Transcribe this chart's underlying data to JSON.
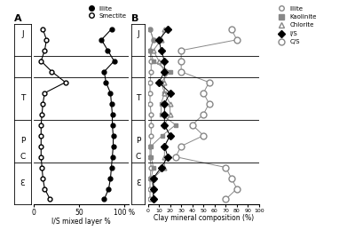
{
  "panel_A": {
    "title": "A",
    "xlabel": "I/S mixed layer %",
    "xticks": [
      0,
      50,
      100
    ],
    "smectite_y": [
      1,
      2,
      3,
      4,
      5,
      6,
      7,
      8,
      9,
      10,
      11,
      12,
      13,
      14,
      15,
      16,
      17
    ],
    "smectite_x": [
      18,
      12,
      10,
      9,
      8,
      8,
      8,
      8,
      9,
      10,
      12,
      35,
      20,
      8,
      12,
      14,
      10
    ],
    "illite_y": [
      1,
      2,
      3,
      4,
      5,
      6,
      7,
      8,
      9,
      10,
      11,
      12,
      13,
      14,
      15,
      16,
      17
    ],
    "illite_x": [
      78,
      83,
      85,
      86,
      87,
      88,
      88,
      87,
      87,
      86,
      85,
      80,
      78,
      89,
      82,
      75,
      86
    ]
  },
  "panel_B": {
    "title": "B",
    "xlabel": "Clay mineral composition (%)",
    "xticks": [
      0,
      10,
      20,
      30,
      40,
      50,
      60,
      70,
      80,
      90,
      100
    ],
    "illite_x": [
      2,
      5,
      2,
      3,
      3,
      2,
      2,
      2,
      3,
      3,
      3,
      2,
      2,
      3,
      2,
      2,
      2
    ],
    "illite_y": [
      17,
      16,
      15,
      14,
      13,
      12,
      11,
      10,
      9,
      8,
      7,
      6,
      5,
      4,
      3,
      2,
      1
    ],
    "kaolinite_x": [
      2,
      5,
      2,
      5,
      20,
      12,
      15,
      12,
      12,
      25,
      13,
      3,
      3,
      5,
      3,
      5,
      5
    ],
    "kaolinite_y": [
      17,
      16,
      15,
      14,
      13,
      12,
      11,
      10,
      9,
      8,
      7,
      6,
      5,
      4,
      3,
      2,
      1
    ],
    "chlorite_x": [
      15,
      12,
      5,
      10,
      15,
      15,
      15,
      20,
      20,
      15,
      20,
      15,
      15,
      15,
      5,
      5,
      5
    ],
    "chlorite_y": [
      17,
      16,
      15,
      14,
      13,
      12,
      11,
      10,
      9,
      8,
      7,
      6,
      5,
      4,
      3,
      2,
      1
    ],
    "IS_x": [
      18,
      10,
      12,
      15,
      15,
      10,
      20,
      15,
      15,
      15,
      20,
      15,
      18,
      12,
      5,
      5,
      5
    ],
    "IS_y": [
      17,
      16,
      15,
      14,
      13,
      12,
      11,
      10,
      9,
      8,
      7,
      6,
      5,
      4,
      3,
      2,
      1
    ],
    "CS_x": [
      75,
      80,
      30,
      30,
      30,
      55,
      50,
      55,
      50,
      40,
      50,
      30,
      25,
      70,
      75,
      80,
      70
    ],
    "CS_y": [
      17,
      16,
      15,
      14,
      13,
      12,
      11,
      10,
      9,
      8,
      7,
      6,
      5,
      4,
      3,
      2,
      1
    ]
  },
  "strat_boundaries": [
    4.5,
    8.5,
    12.5,
    14.5
  ],
  "strat_labels": {
    "J": 16.5,
    "T": 10.5,
    "P": 6.5,
    "C": 5.0,
    "Ɛ": 2.5
  },
  "ymin": 0.5,
  "ymax": 17.5,
  "line_color_A": "#000000",
  "line_color_B": "#888888",
  "IS_color": "#000000",
  "background": "#ffffff"
}
